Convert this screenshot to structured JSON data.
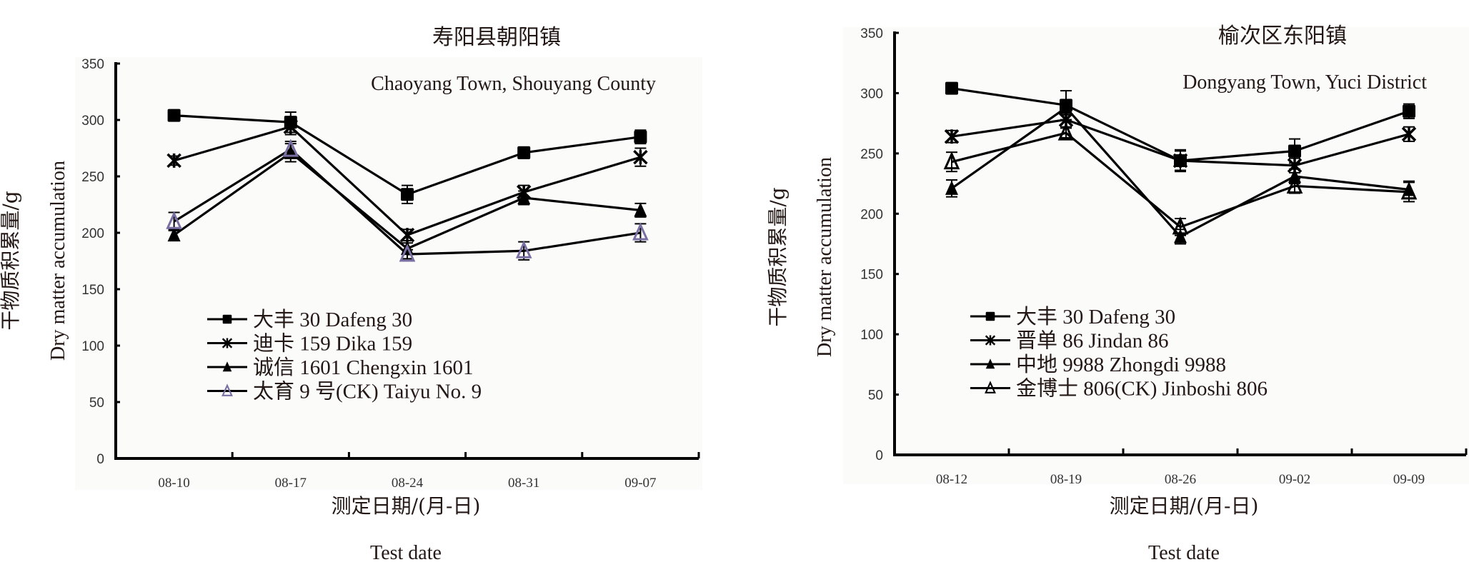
{
  "chart_data": [
    {
      "type": "line",
      "title": "寿阳县朝阳镇",
      "subtitle": "Chaoyang Town, Shouyang County",
      "xlabel": "测定日期/(月-日)",
      "xlabel_en": "Test date",
      "ylabel": "干物质积累量/g",
      "ylabel_en": "Dry matter accumulation",
      "ylim": [
        0,
        350
      ],
      "yticks": [
        0,
        50,
        100,
        150,
        200,
        250,
        300,
        350
      ],
      "categories": [
        "08-10",
        "08-17",
        "08-24",
        "08-31",
        "09-07"
      ],
      "grid": false,
      "legend_position": "lower-left",
      "series": [
        {
          "name": "大丰 30 Dafeng 30",
          "marker": "square",
          "color": "#000000",
          "values": [
            304,
            298,
            234,
            271,
            285
          ],
          "errors": [
            3,
            9,
            8,
            5,
            6
          ]
        },
        {
          "name": "迪卡 159 Dika 159",
          "marker": "asterisk",
          "color": "#000000",
          "values": [
            264,
            294,
            198,
            236,
            267
          ],
          "errors": [
            4,
            7,
            5,
            6,
            8
          ]
        },
        {
          "name": "诚信 1601 Chengxin 1601",
          "marker": "triangle-filled",
          "color": "#000000",
          "values": [
            198,
            271,
            186,
            231,
            220
          ],
          "errors": [
            5,
            8,
            5,
            6,
            6
          ]
        },
        {
          "name": "太育 9 号(CK) Taiyu No. 9",
          "marker": "triangle-open",
          "color": "#7a6fa3",
          "values": [
            210,
            274,
            181,
            184,
            200
          ],
          "errors": [
            8,
            7,
            4,
            8,
            8
          ]
        }
      ]
    },
    {
      "type": "line",
      "title": "榆次区东阳镇",
      "subtitle": "Dongyang Town, Yuci District",
      "xlabel": "测定日期/(月-日)",
      "xlabel_en": "Test date",
      "ylabel": "干物质积累量/g",
      "ylabel_en": "Dry matter accumulation",
      "ylim": [
        0,
        350
      ],
      "yticks": [
        0,
        50,
        100,
        150,
        200,
        250,
        300,
        350
      ],
      "categories": [
        "08-12",
        "08-19",
        "08-26",
        "09-02",
        "09-09"
      ],
      "grid": false,
      "legend_position": "lower-left",
      "series": [
        {
          "name": "大丰 30 Dafeng 30",
          "marker": "square",
          "color": "#000000",
          "values": [
            304,
            290,
            244,
            252,
            285
          ],
          "errors": [
            3,
            12,
            9,
            10,
            6
          ]
        },
        {
          "name": "晋单 86 Jindan 86",
          "marker": "asterisk",
          "color": "#000000",
          "values": [
            264,
            278,
            244,
            240,
            266
          ],
          "errors": [
            5,
            6,
            8,
            6,
            6
          ]
        },
        {
          "name": "中地 9988 Zhongdi 9988",
          "marker": "triangle-filled",
          "color": "#000000",
          "values": [
            221,
            288,
            181,
            231,
            220
          ],
          "errors": [
            7,
            6,
            6,
            6,
            7
          ]
        },
        {
          "name": "金博士 806(CK) Jinboshi 806",
          "marker": "triangle-open",
          "color": "#000000",
          "values": [
            243,
            267,
            189,
            223,
            218
          ],
          "errors": [
            8,
            4,
            7,
            6,
            8
          ]
        }
      ]
    }
  ]
}
